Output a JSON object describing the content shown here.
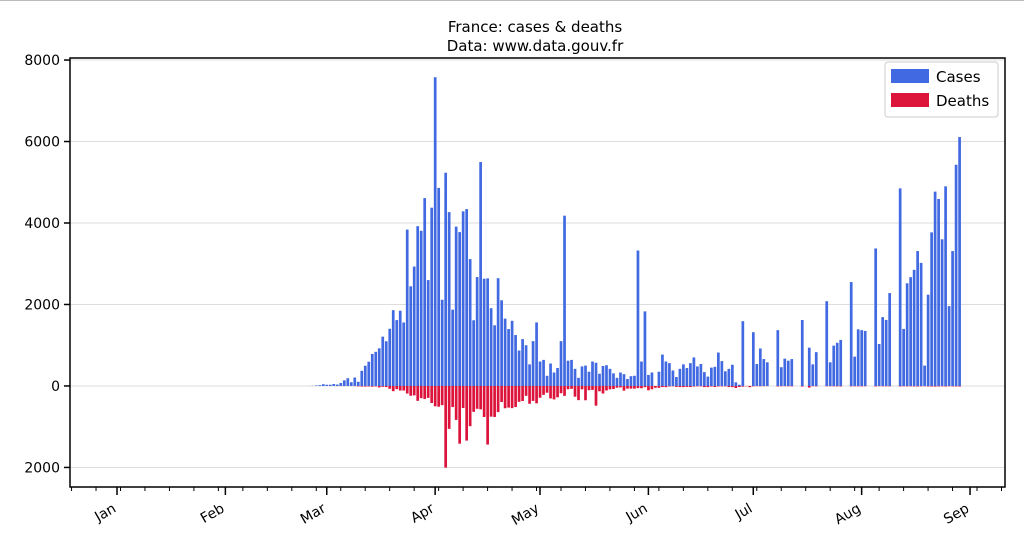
{
  "chart_data": {
    "type": "bar",
    "title": "France: cases & deaths",
    "subtitle": "Data: www.data.gouv.fr",
    "xlabel": "",
    "ylabel": "",
    "ylim": [
      -2480,
      8050
    ],
    "yticks": [
      8000,
      6000,
      4000,
      2000,
      0,
      -2000
    ],
    "ytick_labels": [
      "8000",
      "6000",
      "4000",
      "2000",
      "0",
      "2000"
    ],
    "xtick_labels": [
      "Jan",
      "Feb",
      "Mar",
      "Apr",
      "May",
      "Jun",
      "Jul",
      "Aug",
      "Sep"
    ],
    "xtick_day_of_year": [
      0,
      31,
      60,
      91,
      121,
      152,
      182,
      213,
      244
    ],
    "grid": "horizontal",
    "legend_position": "top-right",
    "start_date": "2020-02-25",
    "start_day_of_year": 55,
    "series": [
      {
        "name": "Cases",
        "color": "#4169e1",
        "direction": "up",
        "values": [
          2,
          3,
          12,
          20,
          43,
          30,
          30,
          48,
          34,
          73,
          138,
          190,
          92,
          207,
          103,
          372,
          497,
          595,
          785,
          838,
          924,
          1210,
          1097,
          1404,
          1861,
          1617,
          1847,
          1559,
          3838,
          2446,
          2931,
          3922,
          3809,
          4611,
          2599,
          4376,
          7578,
          4861,
          2116,
          5233,
          4267,
          1873,
          3912,
          3777,
          4286,
          4342,
          3114,
          1613,
          2673,
          5497,
          2633,
          2641,
          1909,
          1489,
          2645,
          2103,
          1653,
          1397,
          1600,
          1250,
          870,
          1150,
          1000,
          530,
          1100,
          1560,
          600,
          640,
          250,
          550,
          330,
          440,
          1100,
          4180,
          620,
          640,
          420,
          200,
          480,
          500,
          350,
          600,
          570,
          300,
          490,
          510,
          420,
          310,
          200,
          330,
          290,
          170,
          240,
          250,
          3325,
          600,
          1830,
          270,
          330,
          0,
          350,
          770,
          600,
          560,
          380,
          220,
          420,
          530,
          440,
          560,
          700,
          480,
          540,
          340,
          230,
          450,
          470,
          820,
          610,
          360,
          420,
          520,
          90,
          30,
          1590,
          0,
          0,
          1320,
          540,
          920,
          660,
          580,
          0,
          0,
          1370,
          460,
          670,
          620,
          660,
          0,
          0,
          1620,
          0,
          940,
          530,
          830,
          0,
          0,
          2080,
          580,
          990,
          1060,
          1130,
          0,
          0,
          2550,
          720,
          1390,
          1370,
          1350,
          0,
          0,
          3375,
          1030,
          1690,
          1620,
          2280,
          0,
          0,
          4850,
          1400,
          2520,
          2670,
          2850,
          3310,
          3020,
          500,
          2240,
          3770,
          4770,
          4590,
          3600,
          4900,
          1960,
          3310,
          5430,
          6110
        ]
      },
      {
        "name": "Deaths",
        "color": "#dc143c",
        "direction": "down",
        "values": [
          0,
          0,
          0,
          0,
          0,
          0,
          0,
          0,
          2,
          2,
          3,
          2,
          2,
          3,
          11,
          15,
          15,
          13,
          18,
          12,
          36,
          21,
          27,
          69,
          128,
          78,
          112,
          112,
          186,
          240,
          231,
          365,
          299,
          319,
          292,
          418,
          499,
          509,
          471,
          2004,
          1053,
          518,
          833,
          1417,
          541,
          1341,
          987,
          635,
          561,
          574,
          762,
          1438,
          753,
          761,
          642,
          395,
          547,
          531,
          544,
          516,
          389,
          369,
          242,
          437,
          367,
          427,
          289,
          218,
          166,
          306,
          330,
          278,
          178,
          243,
          80,
          70,
          263,
          348,
          83,
          351,
          104,
          96,
          483,
          131,
          186,
          110,
          83,
          74,
          43,
          35,
          115,
          65,
          66,
          66,
          52,
          57,
          31,
          107,
          81,
          44,
          46,
          27,
          29,
          13,
          9,
          23,
          27,
          28,
          24,
          26,
          14,
          9,
          10,
          28,
          28,
          14,
          25,
          12,
          11,
          9,
          26,
          28,
          51,
          25,
          18,
          8,
          30,
          10,
          5,
          8,
          6,
          4,
          0,
          0,
          12,
          6,
          5,
          8,
          10,
          0,
          0,
          14,
          0,
          40,
          6,
          10,
          0,
          0,
          8,
          6,
          9,
          10,
          12,
          0,
          0,
          10,
          8,
          9,
          10,
          8,
          0,
          0,
          12,
          6,
          8,
          9,
          10,
          0,
          0,
          12,
          8,
          10,
          9,
          12,
          14,
          10,
          6,
          12,
          14,
          16,
          12,
          10,
          14,
          8,
          10,
          12,
          14
        ]
      }
    ]
  }
}
